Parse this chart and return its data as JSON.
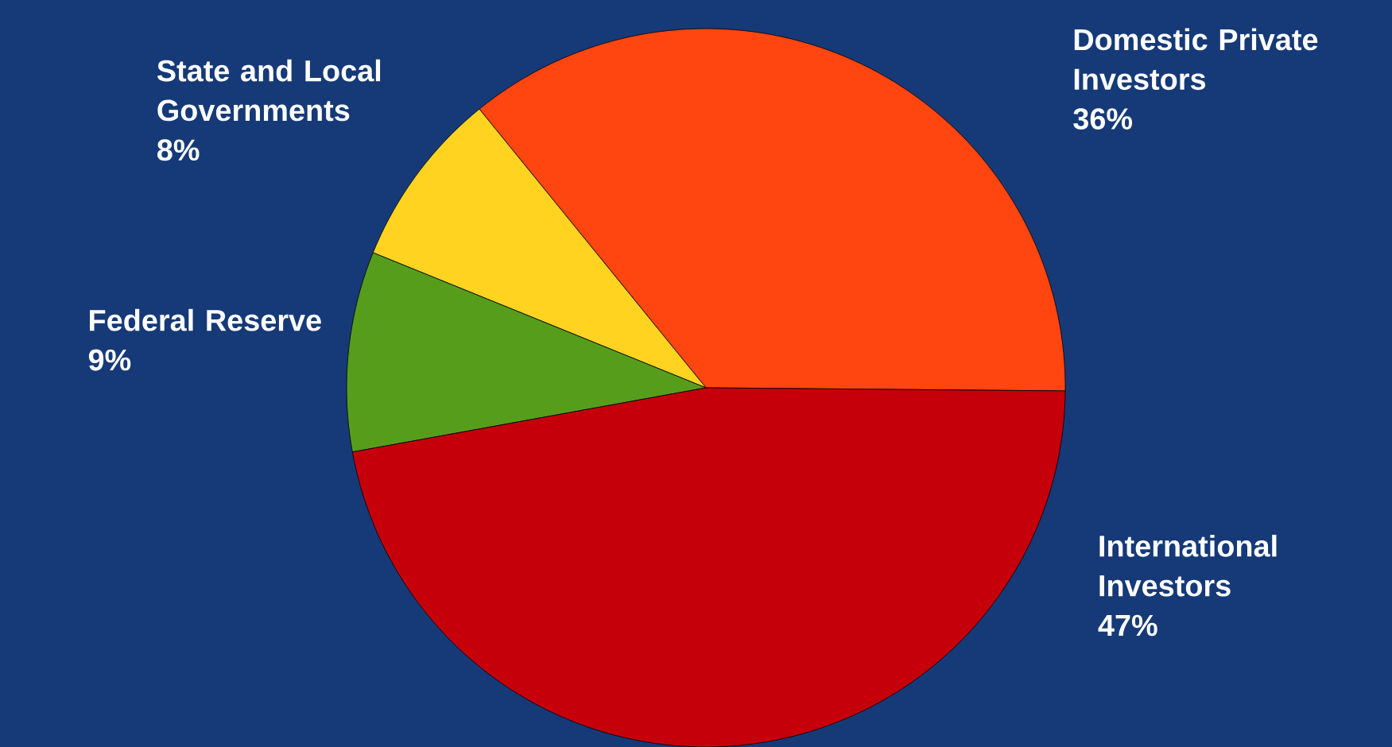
{
  "chart_data": {
    "type": "pie",
    "categories": [
      "Domestic Private Investors",
      "State and Local Governments",
      "Federal Reserve",
      "International Investors"
    ],
    "values": [
      36,
      8,
      9,
      47
    ],
    "colors": [
      "#ff4510",
      "#ffd320",
      "#579d1c",
      "#c5000b"
    ],
    "value_labels": [
      "36%",
      "8%",
      "9%",
      "47%"
    ]
  }
}
